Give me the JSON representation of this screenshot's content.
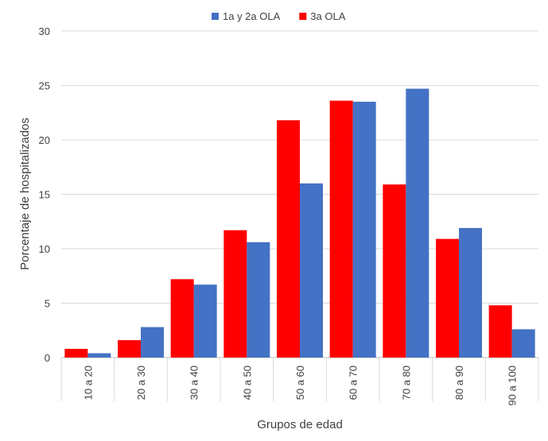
{
  "chart_data": {
    "type": "bar",
    "categories": [
      "10 a 20",
      "20 a 30",
      "30 a 40",
      "40 a 50",
      "50 a 60",
      "60 a 70",
      "70 a 80",
      "80 a 90",
      "90 a 100"
    ],
    "series": [
      {
        "name": "3a OLA",
        "color": "#ff0000",
        "values": [
          0.8,
          1.6,
          7.2,
          11.7,
          21.8,
          23.6,
          15.9,
          10.9,
          4.8
        ]
      },
      {
        "name": "1a y 2a OLA",
        "color": "#4472c4",
        "values": [
          0.4,
          2.8,
          6.7,
          10.6,
          16.0,
          23.5,
          24.7,
          11.9,
          2.6
        ]
      }
    ],
    "legend_order": [
      "1a y 2a OLA",
      "3a OLA"
    ],
    "title": "",
    "xlabel": "Grupos de edad",
    "ylabel": "Porcentaje de hospitalizados",
    "ylim": [
      0,
      30
    ],
    "yticks": [
      0,
      5,
      10,
      15,
      20,
      25,
      30
    ],
    "grid": true,
    "legend_position": "top-center"
  }
}
